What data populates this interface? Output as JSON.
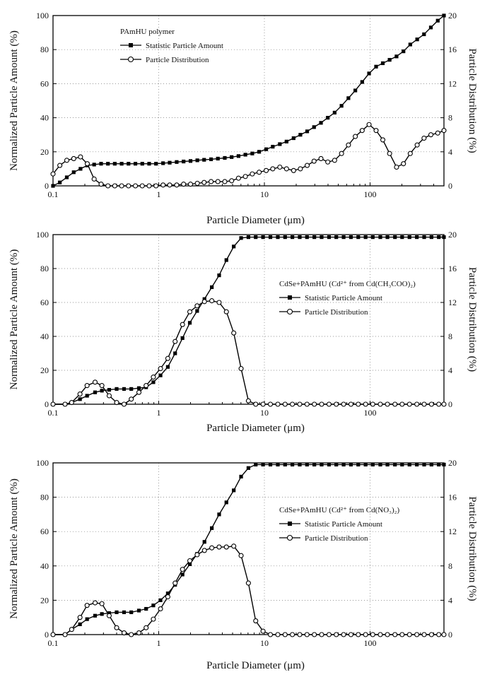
{
  "chart_data": [
    {
      "type": "line",
      "title": "PAmHU polymer",
      "xlabel": "Particle Diameter (μm)",
      "ylabel": "Normalized Particle Amount (%)",
      "y2label": "Particle Distribution (%)",
      "x_scale": "log",
      "xlim": [
        0.1,
        500
      ],
      "ylim": [
        0,
        100
      ],
      "y2lim": [
        0,
        20
      ],
      "x_ticks": [
        "0.1",
        "1",
        "10",
        "100"
      ],
      "y_ticks": [
        "0",
        "20",
        "40",
        "60",
        "80",
        "100"
      ],
      "y2_ticks": [
        "0",
        "4",
        "8",
        "12",
        "16",
        "20"
      ],
      "grid": "dotted",
      "legend_position": "upper-left",
      "series": [
        {
          "name": "Statistic Particle Amount",
          "axis": "left",
          "marker": "filled-square",
          "x": [
            0.1,
            0.116,
            0.135,
            0.157,
            0.182,
            0.211,
            0.245,
            0.285,
            0.331,
            0.384,
            0.446,
            0.518,
            0.602,
            0.699,
            0.812,
            0.943,
            1.1,
            1.27,
            1.48,
            1.72,
            2.0,
            2.32,
            2.69,
            3.13,
            3.63,
            4.22,
            4.9,
            5.69,
            6.61,
            7.68,
            8.92,
            10.4,
            12.0,
            14.0,
            16.2,
            18.9,
            21.9,
            25.4,
            29.5,
            34.3,
            39.8,
            46.2,
            53.7,
            62.4,
            72.5,
            84.2,
            97.8,
            114,
            132,
            153,
            178,
            207,
            240,
            279,
            324,
            376,
            437,
            500
          ],
          "y": [
            0,
            2,
            5,
            8,
            10,
            12,
            12.5,
            13,
            13,
            13,
            13,
            13,
            13,
            13,
            13,
            13,
            13.3,
            13.6,
            14,
            14.3,
            14.6,
            15,
            15.3,
            15.6,
            16,
            16.4,
            16.9,
            17.5,
            18.3,
            19,
            20,
            21.5,
            23,
            24.5,
            26,
            28,
            30,
            32,
            34.5,
            37,
            40,
            43,
            47,
            51.5,
            56,
            61,
            66,
            70,
            72,
            74,
            76,
            79,
            83,
            86,
            89,
            93,
            97,
            100
          ]
        },
        {
          "name": "Particle Distribution",
          "axis": "right",
          "marker": "open-circle",
          "x": [
            0.1,
            0.116,
            0.135,
            0.157,
            0.182,
            0.211,
            0.245,
            0.285,
            0.331,
            0.384,
            0.446,
            0.518,
            0.602,
            0.699,
            0.812,
            0.943,
            1.1,
            1.27,
            1.48,
            1.72,
            2.0,
            2.32,
            2.69,
            3.13,
            3.63,
            4.22,
            4.9,
            5.69,
            6.61,
            7.68,
            8.92,
            10.4,
            12.0,
            14.0,
            16.2,
            18.9,
            21.9,
            25.4,
            29.5,
            34.3,
            39.8,
            46.2,
            53.7,
            62.4,
            72.5,
            84.2,
            97.8,
            114,
            132,
            153,
            178,
            207,
            240,
            279,
            324,
            376,
            437,
            500
          ],
          "y": [
            1.4,
            2.4,
            3.0,
            3.2,
            3.4,
            2.6,
            0.8,
            0.2,
            0,
            0,
            0,
            0,
            0,
            0,
            0,
            0,
            0.1,
            0.1,
            0.1,
            0.2,
            0.2,
            0.3,
            0.4,
            0.5,
            0.5,
            0.5,
            0.6,
            0.9,
            1.1,
            1.4,
            1.6,
            1.8,
            2.0,
            2.2,
            2.0,
            1.8,
            2.0,
            2.4,
            2.9,
            3.2,
            2.8,
            3.0,
            3.8,
            4.8,
            5.8,
            6.5,
            7.2,
            6.5,
            5.4,
            3.8,
            2.2,
            2.6,
            3.8,
            4.8,
            5.6,
            6.0,
            6.2,
            6.5
          ]
        }
      ]
    },
    {
      "type": "line",
      "title": "CdSe+PAmHU (Cd²⁺ from Cd(CH₃COO)₂)",
      "xlabel": "Particle Diameter (μm)",
      "ylabel": "Normalized Particle Amount (%)",
      "y2label": "Particle Distribution (%)",
      "x_scale": "log",
      "xlim": [
        0.1,
        500
      ],
      "ylim": [
        0,
        100
      ],
      "y2lim": [
        0,
        20
      ],
      "x_ticks": [
        "0.1",
        "1",
        "10",
        "100"
      ],
      "y_ticks": [
        "0",
        "20",
        "40",
        "60",
        "80",
        "100"
      ],
      "y2_ticks": [
        "0",
        "4",
        "8",
        "12",
        "16",
        "20"
      ],
      "grid": "dotted",
      "legend_position": "center-right",
      "series": [
        {
          "name": "Statistic Particle Amount",
          "axis": "left",
          "marker": "filled-square",
          "x": [
            0.1,
            0.13,
            0.15,
            0.18,
            0.21,
            0.25,
            0.29,
            0.34,
            0.4,
            0.47,
            0.55,
            0.65,
            0.76,
            0.89,
            1.04,
            1.22,
            1.43,
            1.68,
            1.97,
            2.31,
            2.71,
            3.18,
            3.73,
            4.37,
            5.13,
            6.02,
            7.06,
            8.28,
            9.71,
            11.4,
            13.4,
            15.7,
            18.4,
            21.6,
            25.3,
            29.7,
            34.8,
            40.9,
            47.9,
            56.2,
            65.9,
            77.3,
            90.7,
            106,
            125,
            146,
            172,
            201,
            236,
            277,
            325,
            381,
            447,
            500
          ],
          "y": [
            0,
            0,
            1,
            3,
            5,
            7,
            8,
            8.5,
            9,
            9,
            9,
            9.5,
            10,
            13,
            17,
            22,
            30,
            39,
            48,
            55,
            62,
            69,
            76,
            85,
            93,
            98,
            98.5,
            98.5,
            98.5,
            98.5,
            98.5,
            98.5,
            98.5,
            98.5,
            98.5,
            98.5,
            98.5,
            98.5,
            98.5,
            98.5,
            98.5,
            98.5,
            98.5,
            98.5,
            98.5,
            98.5,
            98.5,
            98.5,
            98.5,
            98.5,
            98.5,
            98.5,
            98.5,
            98.5
          ]
        },
        {
          "name": "Particle Distribution",
          "axis": "right",
          "marker": "open-circle",
          "x": [
            0.1,
            0.13,
            0.15,
            0.18,
            0.21,
            0.25,
            0.29,
            0.34,
            0.4,
            0.47,
            0.55,
            0.65,
            0.76,
            0.89,
            1.04,
            1.22,
            1.43,
            1.68,
            1.97,
            2.31,
            2.71,
            3.18,
            3.73,
            4.37,
            5.13,
            6.02,
            7.06,
            8.28,
            9.71,
            11.4,
            13.4,
            15.7,
            18.4,
            21.6,
            25.3,
            29.7,
            34.8,
            40.9,
            47.9,
            56.2,
            65.9,
            77.3,
            90.7,
            106,
            125,
            146,
            172,
            201,
            236,
            277,
            325,
            381,
            447,
            500
          ],
          "y": [
            0,
            0,
            0.2,
            1.2,
            2.2,
            2.6,
            2.2,
            1.0,
            0.2,
            0,
            0.6,
            1.4,
            2.2,
            3.2,
            4.2,
            5.4,
            7.4,
            9.4,
            10.9,
            11.6,
            12.1,
            12.2,
            12.0,
            10.9,
            8.4,
            4.2,
            0.4,
            0,
            0,
            0,
            0,
            0,
            0,
            0,
            0,
            0,
            0,
            0,
            0,
            0,
            0,
            0,
            0,
            0,
            0,
            0,
            0,
            0,
            0,
            0,
            0,
            0,
            0,
            0
          ]
        }
      ]
    },
    {
      "type": "line",
      "title": "CdSe+PAmHU (Cd²⁺ from Cd(NO₃)₂)",
      "xlabel": "Particle Diameter (μm)",
      "ylabel": "Normalized Particle Amount (%)",
      "y2label": "Particle Distribution (%)",
      "x_scale": "log",
      "xlim": [
        0.1,
        500
      ],
      "ylim": [
        0,
        100
      ],
      "y2lim": [
        0,
        20
      ],
      "x_ticks": [
        "0.1",
        "1",
        "10",
        "100"
      ],
      "y_ticks": [
        "0",
        "20",
        "40",
        "60",
        "80",
        "100"
      ],
      "y2_ticks": [
        "0",
        "4",
        "8",
        "12",
        "16",
        "20"
      ],
      "grid": "dotted",
      "legend_position": "center-right",
      "series": [
        {
          "name": "Statistic Particle Amount",
          "axis": "left",
          "marker": "filled-square",
          "x": [
            0.1,
            0.13,
            0.15,
            0.18,
            0.21,
            0.25,
            0.29,
            0.34,
            0.4,
            0.47,
            0.55,
            0.65,
            0.76,
            0.89,
            1.04,
            1.22,
            1.43,
            1.68,
            1.97,
            2.31,
            2.71,
            3.18,
            3.73,
            4.37,
            5.13,
            6.02,
            7.06,
            8.28,
            9.71,
            11.4,
            13.4,
            15.7,
            18.4,
            21.6,
            25.3,
            29.7,
            34.8,
            40.9,
            47.9,
            56.2,
            65.9,
            77.3,
            90.7,
            106,
            125,
            146,
            172,
            201,
            236,
            277,
            325,
            381,
            447,
            500
          ],
          "y": [
            0,
            0,
            3,
            6,
            9,
            11,
            12,
            12.5,
            13,
            13,
            13,
            14,
            15,
            17,
            20,
            24,
            29,
            35,
            41,
            47,
            54,
            62,
            70,
            77,
            84,
            92,
            97,
            99,
            99,
            99,
            99,
            99,
            99,
            99,
            99,
            99,
            99,
            99,
            99,
            99,
            99,
            99,
            99,
            99,
            99,
            99,
            99,
            99,
            99,
            99,
            99,
            99,
            99,
            99
          ]
        },
        {
          "name": "Particle Distribution",
          "axis": "right",
          "marker": "open-circle",
          "x": [
            0.1,
            0.13,
            0.15,
            0.18,
            0.21,
            0.25,
            0.29,
            0.34,
            0.4,
            0.47,
            0.55,
            0.65,
            0.76,
            0.89,
            1.04,
            1.22,
            1.43,
            1.68,
            1.97,
            2.31,
            2.71,
            3.18,
            3.73,
            4.37,
            5.13,
            6.02,
            7.06,
            8.28,
            9.71,
            11.4,
            13.4,
            15.7,
            18.4,
            21.6,
            25.3,
            29.7,
            34.8,
            40.9,
            47.9,
            56.2,
            65.9,
            77.3,
            90.7,
            106,
            125,
            146,
            172,
            201,
            236,
            277,
            325,
            381,
            447,
            500
          ],
          "y": [
            0,
            0,
            0.6,
            2.0,
            3.4,
            3.7,
            3.6,
            2.2,
            0.8,
            0.2,
            0,
            0.2,
            0.8,
            1.8,
            3.0,
            4.4,
            6.0,
            7.6,
            8.6,
            9.3,
            9.8,
            10.1,
            10.2,
            10.2,
            10.3,
            9.2,
            6.0,
            1.6,
            0.4,
            0,
            0,
            0,
            0,
            0,
            0,
            0,
            0,
            0,
            0,
            0,
            0,
            0,
            0,
            0,
            0,
            0,
            0,
            0,
            0,
            0,
            0,
            0,
            0,
            0
          ]
        }
      ]
    }
  ]
}
